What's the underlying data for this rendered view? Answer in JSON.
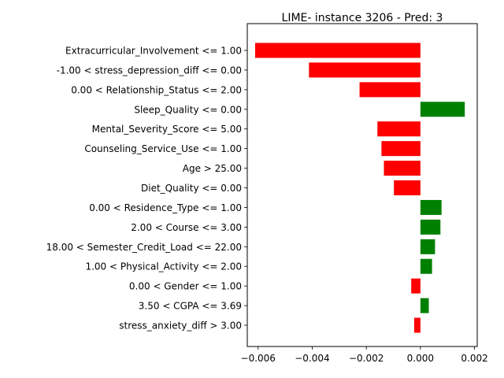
{
  "chart_data": {
    "type": "bar",
    "orientation": "horizontal",
    "title": "LIME- instance 3206 - Pred: 3",
    "xlabel": "",
    "ylabel": "",
    "xlim": [
      -0.0064,
      0.0021
    ],
    "xticks": [
      -0.006,
      -0.004,
      -0.002,
      0.0,
      0.002
    ],
    "xtick_labels": [
      "−0.006",
      "−0.004",
      "−0.002",
      "0.000",
      "0.002"
    ],
    "grid": false,
    "legend": "none",
    "positive_color": "#008000",
    "negative_color": "#ff0000",
    "categories": [
      "Extracurricular_Involvement <= 1.00",
      "-1.00 < stress_depression_diff <= 0.00",
      "0.00 < Relationship_Status <= 2.00",
      "Sleep_Quality <= 0.00",
      "Mental_Severity_Score <= 5.00",
      "Counseling_Service_Use <= 1.00",
      "Age > 25.00",
      "Diet_Quality <= 0.00",
      "0.00 < Residence_Type <= 1.00",
      "2.00 < Course <= 3.00",
      "18.00 < Semester_Credit_Load <= 22.00",
      "1.00 < Physical_Activity <= 2.00",
      "0.00 < Gender <= 1.00",
      "3.50 < CGPA <= 3.69",
      "stress_anxiety_diff > 3.00"
    ],
    "values": [
      -0.00611,
      -0.00412,
      -0.00225,
      0.00164,
      -0.00159,
      -0.00144,
      -0.00135,
      -0.00098,
      0.00078,
      0.00074,
      0.00054,
      0.00043,
      -0.00034,
      0.00031,
      -0.00023
    ]
  }
}
